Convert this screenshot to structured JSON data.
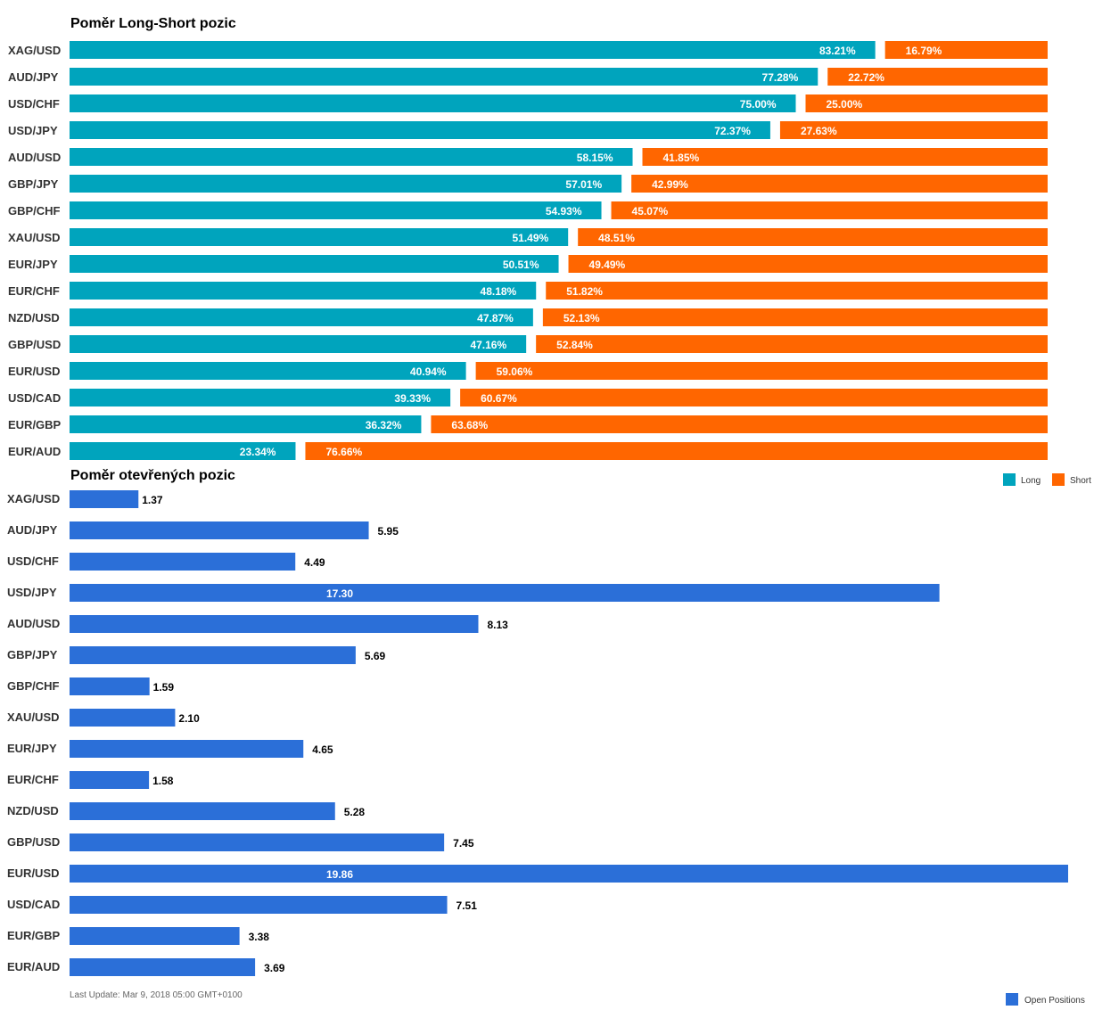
{
  "chart_data": [
    {
      "type": "bar",
      "orientation": "horizontal",
      "stacked": true,
      "title": "Poměr Long-Short pozic",
      "categories": [
        "XAG/USD",
        "AUD/JPY",
        "USD/CHF",
        "USD/JPY",
        "AUD/USD",
        "GBP/JPY",
        "GBP/CHF",
        "XAU/USD",
        "EUR/JPY",
        "EUR/CHF",
        "NZD/USD",
        "GBP/USD",
        "EUR/USD",
        "USD/CAD",
        "EUR/GBP",
        "EUR/AUD"
      ],
      "series": [
        {
          "name": "Long",
          "color": "#00a4bd",
          "values": [
            83.21,
            77.28,
            75.0,
            72.37,
            58.15,
            57.01,
            54.93,
            51.49,
            50.51,
            48.18,
            47.87,
            47.16,
            40.94,
            39.33,
            36.32,
            23.34
          ],
          "labels": [
            "83.21%",
            "77.28%",
            "75.00%",
            "72.37%",
            "58.15%",
            "57.01%",
            "54.93%",
            "51.49%",
            "50.51%",
            "48.18%",
            "47.87%",
            "47.16%",
            "40.94%",
            "39.33%",
            "36.32%",
            "23.34%"
          ]
        },
        {
          "name": "Short",
          "color": "#ff6600",
          "values": [
            16.79,
            22.72,
            25.0,
            27.63,
            41.85,
            42.99,
            45.07,
            48.51,
            49.49,
            51.82,
            52.13,
            52.84,
            59.06,
            60.67,
            63.68,
            76.66
          ],
          "labels": [
            "16.79%",
            "22.72%",
            "25.00%",
            "27.63%",
            "41.85%",
            "42.99%",
            "45.07%",
            "48.51%",
            "49.49%",
            "51.82%",
            "52.13%",
            "52.84%",
            "59.06%",
            "60.67%",
            "63.68%",
            "76.66%"
          ]
        }
      ],
      "xlim": [
        0,
        100
      ],
      "legend": "bottom-right"
    },
    {
      "type": "bar",
      "orientation": "horizontal",
      "title": "Poměr otevřených pozic",
      "categories": [
        "XAG/USD",
        "AUD/JPY",
        "USD/CHF",
        "USD/JPY",
        "AUD/USD",
        "GBP/JPY",
        "GBP/CHF",
        "XAU/USD",
        "EUR/JPY",
        "EUR/CHF",
        "NZD/USD",
        "GBP/USD",
        "EUR/USD",
        "USD/CAD",
        "EUR/GBP",
        "EUR/AUD"
      ],
      "series": [
        {
          "name": "Open Positions",
          "color": "#2b6fd8",
          "values": [
            1.37,
            5.95,
            4.49,
            17.3,
            8.13,
            5.69,
            1.59,
            2.1,
            4.65,
            1.58,
            5.28,
            7.45,
            19.86,
            7.51,
            3.38,
            3.69
          ],
          "labels": [
            "1.37",
            "5.95",
            "4.49",
            "17.30",
            "8.13",
            "5.69",
            "1.59",
            "2.10",
            "4.65",
            "1.58",
            "5.28",
            "7.45",
            "19.86",
            "7.51",
            "3.38",
            "3.69"
          ]
        }
      ],
      "xlim": [
        0,
        19.86
      ],
      "legend": "bottom-right"
    }
  ],
  "footer": {
    "last_update": "Last Update: Mar 9, 2018 05:00 GMT+0100"
  }
}
